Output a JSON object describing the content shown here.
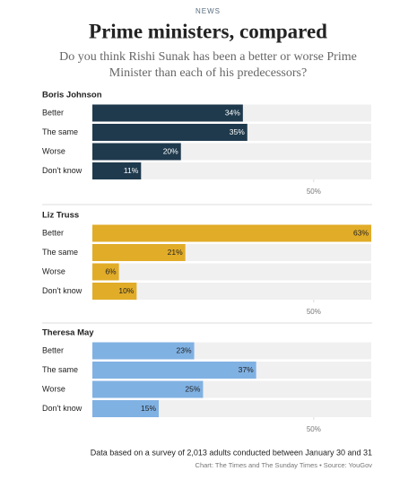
{
  "header": {
    "section": "NEWS",
    "title": "Prime ministers, compared",
    "subtitle": [
      "Do you think Rishi Sunak has been a better or worse Prime",
      "Minister than each of his predecessors?"
    ]
  },
  "chart_data": [
    {
      "type": "bar",
      "orientation": "horizontal",
      "title": "Boris Johnson",
      "categories": [
        "Better",
        "The same",
        "Worse",
        "Don't know"
      ],
      "values": [
        34,
        35,
        20,
        11
      ],
      "value_labels": [
        "34%",
        "35%",
        "20%",
        "11%"
      ],
      "color": "#1f3a4d",
      "xlim": [
        0,
        63
      ],
      "xticks": [
        {
          "value": 50,
          "label": "50%"
        }
      ]
    },
    {
      "type": "bar",
      "orientation": "horizontal",
      "title": "Liz Truss",
      "categories": [
        "Better",
        "The same",
        "Worse",
        "Don't know"
      ],
      "values": [
        63,
        21,
        6,
        10
      ],
      "value_labels": [
        "63%",
        "21%",
        "6%",
        "10%"
      ],
      "color": "#e1ac28",
      "xlim": [
        0,
        63
      ],
      "xticks": [
        {
          "value": 50,
          "label": "50%"
        }
      ]
    },
    {
      "type": "bar",
      "orientation": "horizontal",
      "title": "Theresa May",
      "categories": [
        "Better",
        "The same",
        "Worse",
        "Don't know"
      ],
      "values": [
        23,
        37,
        25,
        15
      ],
      "value_labels": [
        "23%",
        "37%",
        "25%",
        "15%"
      ],
      "color": "#80b1e3",
      "xlim": [
        0,
        63
      ],
      "xticks": [
        {
          "value": 50,
          "label": "50%"
        }
      ]
    }
  ],
  "footer": {
    "note": "Data based on a survey of 2,013 adults conducted between January 30 and 31",
    "source": "Chart: The Times and The Sunday Times • Source: YouGov"
  }
}
